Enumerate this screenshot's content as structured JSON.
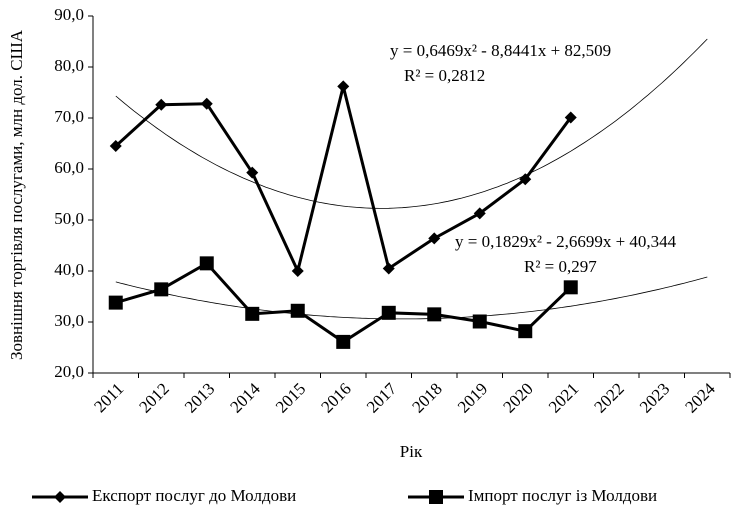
{
  "chart_data": {
    "type": "line",
    "xlabel": "Рік",
    "ylabel": "Зовнішня торгівля послугами, млн  дол. США",
    "categories": [
      "2011",
      "2012",
      "2013",
      "2014",
      "2015",
      "2016",
      "2017",
      "2018",
      "2019",
      "2020",
      "2021",
      "2022",
      "2023",
      "2024"
    ],
    "series": [
      {
        "name": "Експорт послуг до Молдови",
        "color": "#000000",
        "marker": "diamond",
        "values": [
          64.5,
          72.6,
          72.8,
          59.3,
          40.0,
          76.2,
          40.5,
          46.4,
          51.3,
          58.0,
          70.1,
          null,
          null,
          null
        ],
        "trend": {
          "equation": "y = 0,6469x² - 8,8441x + 82,509",
          "r2": "R² = 0,2812",
          "coefficients": [
            0.6469,
            -8.8441,
            82.509
          ]
        }
      },
      {
        "name": "Імпорт послуг із Молдови",
        "color": "#000000",
        "marker": "square",
        "values": [
          33.8,
          36.4,
          41.5,
          31.6,
          32.2,
          26.1,
          31.8,
          31.5,
          30.1,
          28.2,
          36.8,
          null,
          null,
          null
        ],
        "trend": {
          "equation": "y = 0,1829x² - 2,6699x + 40,344",
          "r2": "R² = 0,297",
          "coefficients": [
            0.1829,
            -2.6699,
            40.344
          ]
        }
      }
    ],
    "ylim": [
      20,
      90
    ],
    "yticks": [
      {
        "value": 20,
        "label": "20,0"
      },
      {
        "value": 30,
        "label": "30,0"
      },
      {
        "value": 40,
        "label": "40,0"
      },
      {
        "value": 50,
        "label": "50,0"
      },
      {
        "value": 60,
        "label": "60,0"
      },
      {
        "value": 70,
        "label": "70,0"
      },
      {
        "value": 80,
        "label": "80,0"
      },
      {
        "value": 90,
        "label": "90,0"
      }
    ],
    "grid": false,
    "legend": "bottom"
  }
}
